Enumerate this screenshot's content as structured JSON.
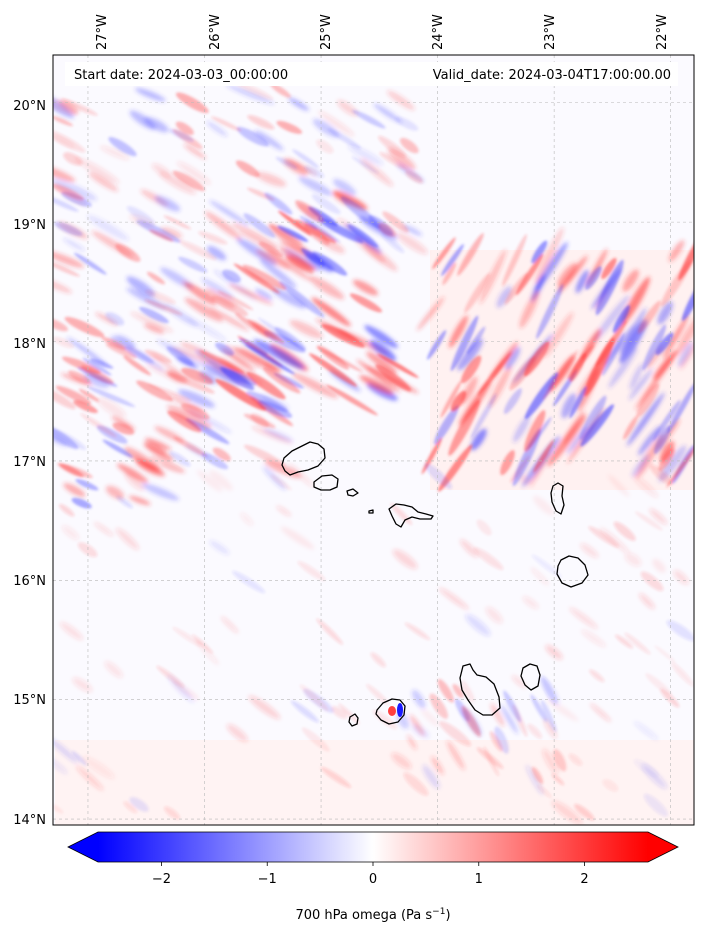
{
  "header": {
    "start_date": "Start date: 2024-03-03_00:00:00",
    "valid_date": "Valid_date: 2024-03-04T17:00:00.00"
  },
  "map": {
    "lon_labels": [
      "27°W",
      "26°W",
      "25°W",
      "24°W",
      "23°W",
      "22°W"
    ],
    "lat_labels": [
      "20°N",
      "19°N",
      "18°N",
      "17°N",
      "16°N",
      "15°N",
      "14°N"
    ],
    "gridlines": true,
    "lon_range": [
      -27.3,
      -21.8
    ],
    "lat_range": [
      13.95,
      20.4
    ]
  },
  "colorbar": {
    "tick_labels": [
      "−2",
      "−1",
      "0",
      "1",
      "2"
    ],
    "tick_values": [
      -2,
      -1,
      0,
      1,
      2
    ],
    "range": [
      -2.6,
      2.6
    ],
    "extend": "both",
    "label_main": "700 hPa omega (Pa s",
    "label_sup": "−1",
    "label_end": ")",
    "colormap": "bwr",
    "low_color": "#0000ff",
    "mid_color": "#ffffff",
    "high_color": "#ff0000"
  }
}
